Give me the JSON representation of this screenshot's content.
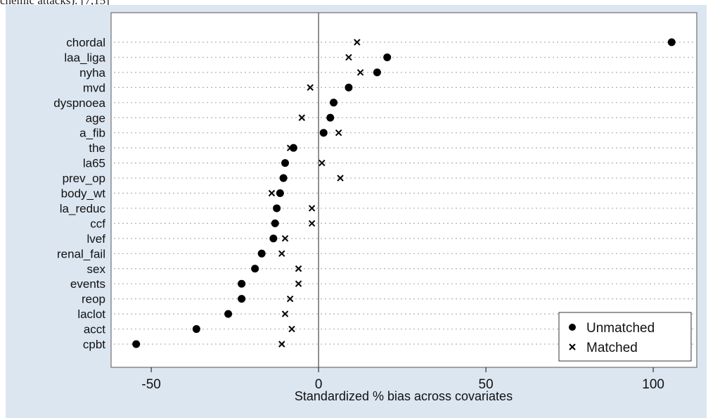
{
  "caption_fragment": "chemic attacks). [7,15]",
  "colors": {
    "panel": "#dce6f1",
    "plot_bg": "#ffffff",
    "marker": "#000000",
    "grid": "#b0b0b0"
  },
  "chart_data": {
    "type": "scatter",
    "title": "",
    "xlabel": "Standardized % bias across covariates",
    "ylabel": "",
    "xlim": [
      -62,
      113
    ],
    "xticks": [
      -50,
      0,
      50,
      100
    ],
    "reference_line": 0,
    "grid": "horizontal dotted",
    "legend_position": "bottom-right",
    "categories": [
      "chordal",
      "laa_liga",
      "nyha",
      "mvd",
      "dyspnoea",
      "age",
      "a_fib",
      "the",
      "la65",
      "prev_op",
      "body_wt",
      "la_reduc",
      "ccf",
      "lvef",
      "renal_fail",
      "sex",
      "events",
      "reop",
      "laclot",
      "acct",
      "cpbt"
    ],
    "series": [
      {
        "name": "Unmatched",
        "marker": "dot",
        "values": [
          105.5,
          20.5,
          17.5,
          9,
          4.5,
          3.5,
          1.5,
          -7.5,
          -10,
          -10.5,
          -11.5,
          -12.5,
          -13,
          -13.5,
          -17,
          -19,
          -23,
          -23,
          -27,
          -36.5,
          -54.5
        ]
      },
      {
        "name": "Matched",
        "marker": "x",
        "values": [
          11.5,
          9,
          12.5,
          -2.5,
          null,
          -5,
          6,
          -8.5,
          1,
          6.5,
          -14,
          -2,
          -2,
          -10,
          -11,
          -6,
          -6,
          -8.5,
          -10,
          -8,
          -11
        ]
      }
    ]
  }
}
